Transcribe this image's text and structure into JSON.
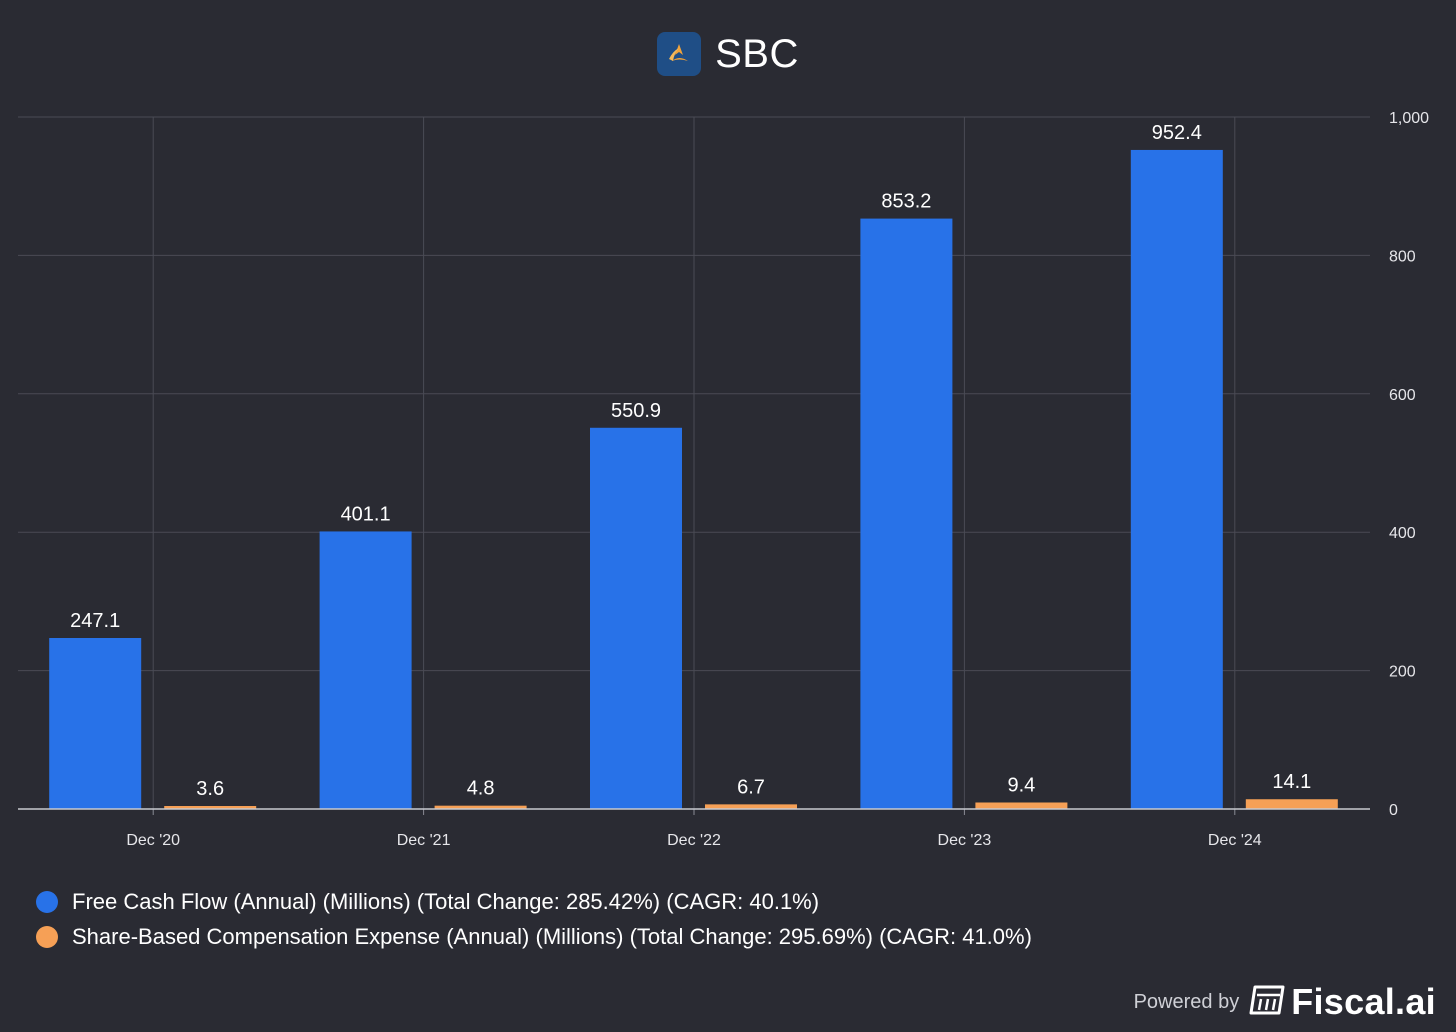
{
  "chart_data": {
    "type": "bar",
    "title": "SBC",
    "categories": [
      "Dec '20",
      "Dec '21",
      "Dec '22",
      "Dec '23",
      "Dec '24"
    ],
    "series": [
      {
        "name": "Free Cash Flow (Annual) (Millions) (Total Change: 285.42%) (CAGR: 40.1%)",
        "color": "#2872e8",
        "values": [
          247.1,
          401.1,
          550.9,
          853.2,
          952.4
        ],
        "labels": [
          "247.1",
          "401.1",
          "550.9",
          "853.2",
          "952.4"
        ]
      },
      {
        "name": "Share-Based Compensation Expense (Annual) (Millions) (Total Change: 295.69%) (CAGR: 41.0%)",
        "color": "#f6a056",
        "values": [
          3.6,
          4.8,
          6.7,
          9.4,
          14.1
        ],
        "labels": [
          "3.6",
          "4.8",
          "6.7",
          "9.4",
          "14.1"
        ]
      }
    ],
    "y_ticks": [
      0,
      200,
      400,
      600,
      800,
      1000
    ],
    "y_tick_labels": [
      "0",
      "200",
      "400",
      "600",
      "800",
      "1,000"
    ],
    "ylim": [
      0,
      1000
    ],
    "y_axis_side": "right",
    "grid": true,
    "legend_position": "bottom-left"
  },
  "branding": {
    "powered_by": "Powered by",
    "name": "Fiscal.ai",
    "logo_icon": "fiscal-logo-icon"
  },
  "header": {
    "logo_icon": "company-logo-icon"
  }
}
